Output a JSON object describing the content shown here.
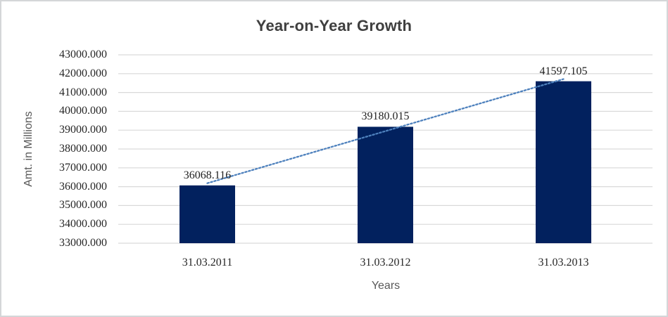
{
  "chart_data": {
    "type": "bar",
    "title": "Year-on-Year Growth",
    "xlabel": "Years",
    "ylabel": "Amt. in Millions",
    "categories": [
      "31.03.2011",
      "31.03.2012",
      "31.03.2013"
    ],
    "values": [
      36068.116,
      39180.015,
      41597.105
    ],
    "data_labels": [
      "36068.116",
      "39180.015",
      "41597.105"
    ],
    "ylim": [
      33000,
      43000
    ],
    "ytick_step": 1000,
    "ytick_labels": [
      "33000.000",
      "34000.000",
      "35000.000",
      "36000.000",
      "37000.000",
      "38000.000",
      "39000.000",
      "40000.000",
      "41000.000",
      "42000.000",
      "43000.000"
    ],
    "grid": true,
    "legend": "none",
    "trendline": {
      "type": "linear",
      "style": "dotted"
    },
    "colors": {
      "bar": "#02215e",
      "gridline": "#d9d9d9",
      "trendline": "#4e81bd",
      "title": "#3f3f3f",
      "tick_label": "#262626",
      "axis_title": "#595959",
      "frame_border": "#d4d6d8",
      "background": "#ffffff"
    }
  }
}
